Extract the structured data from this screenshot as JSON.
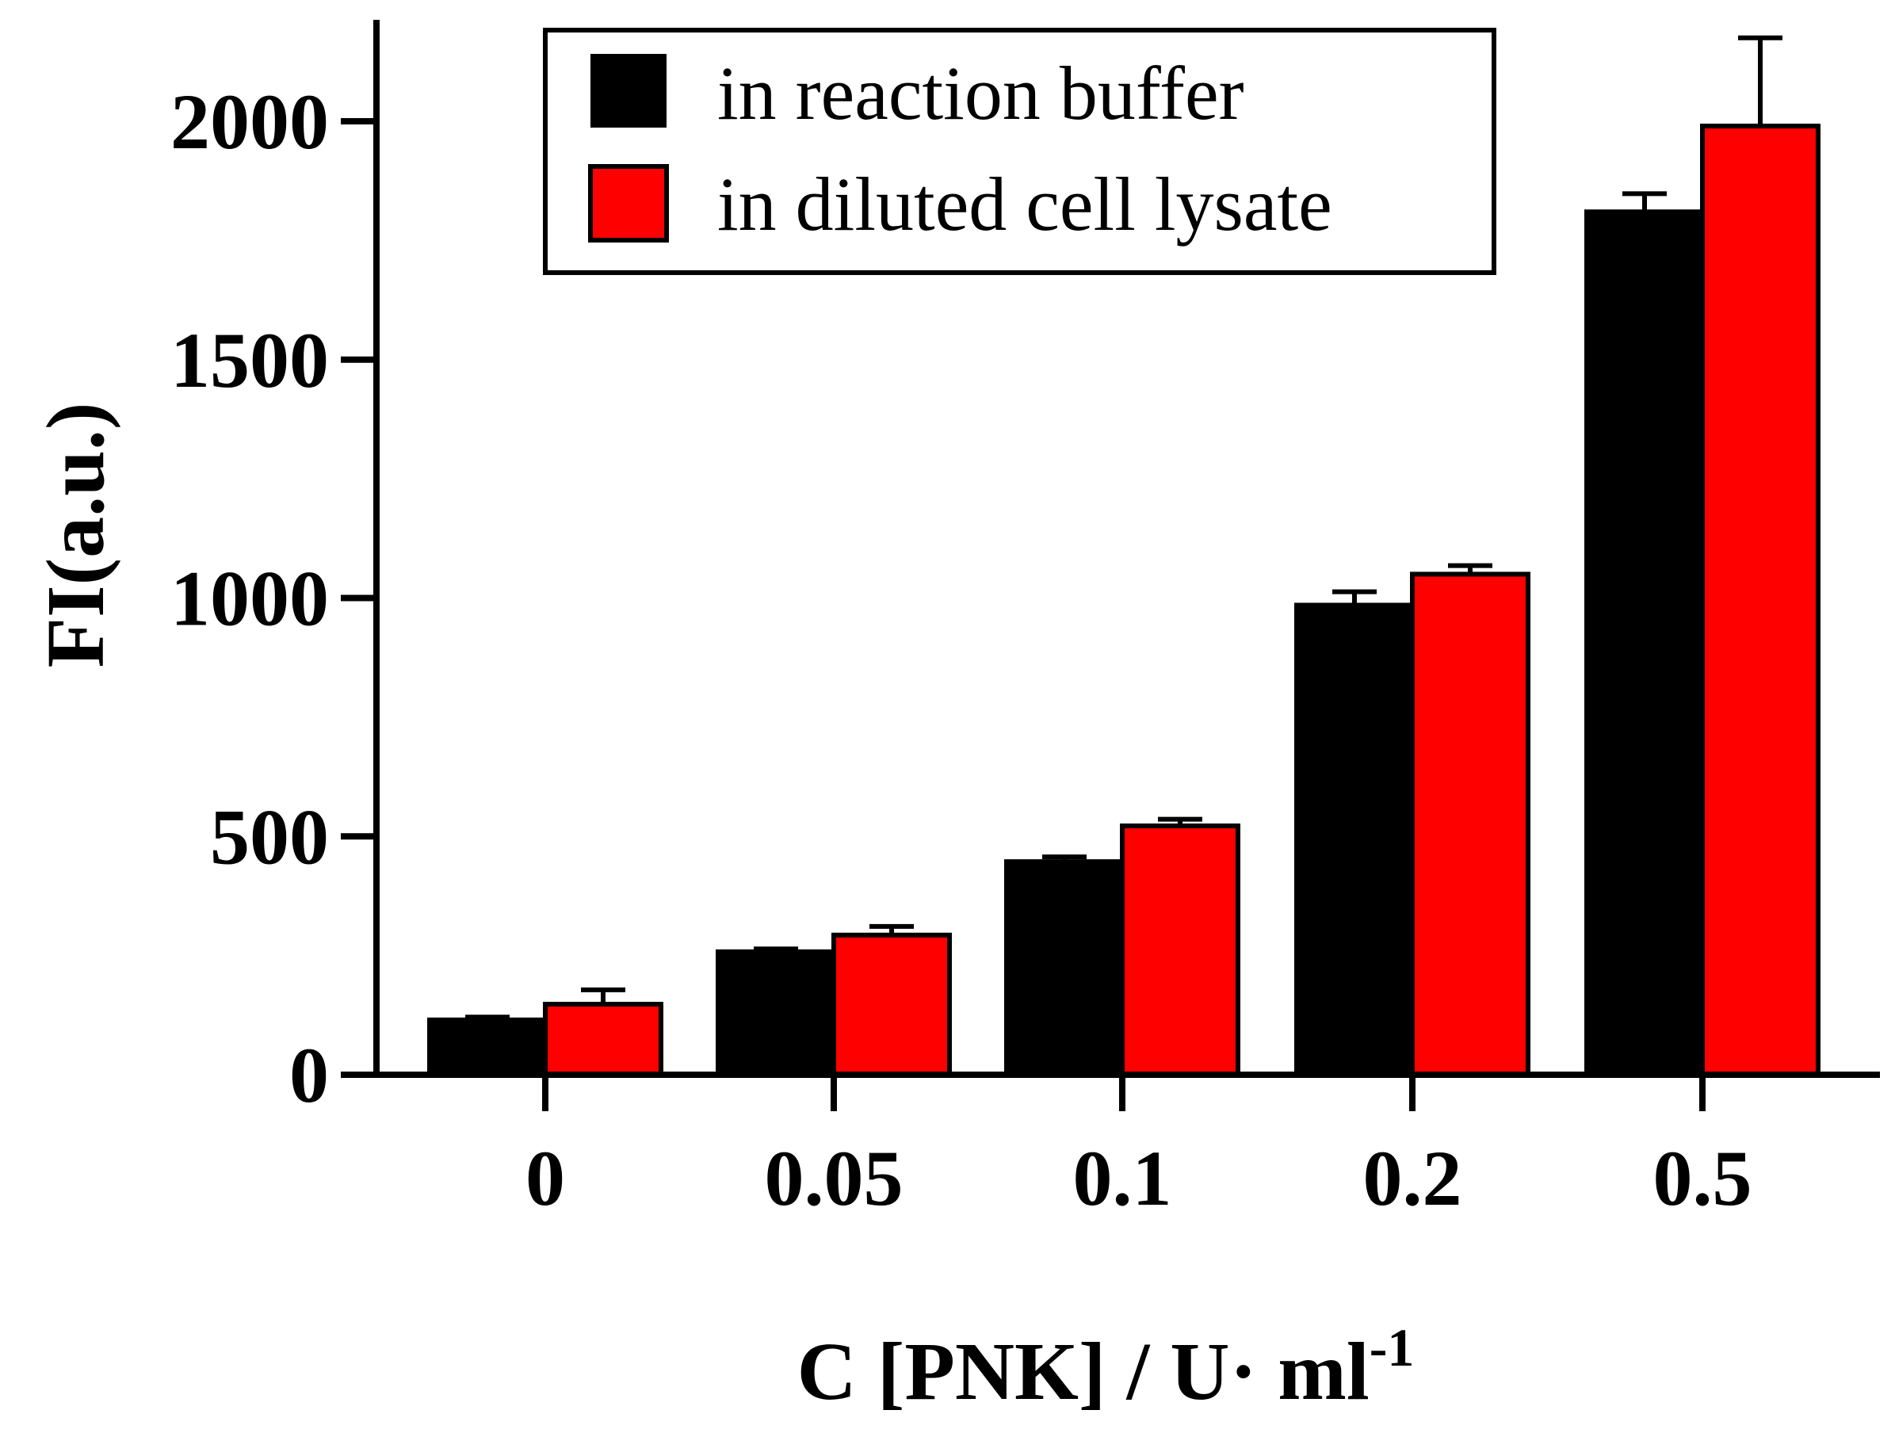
{
  "chart_data": {
    "type": "bar",
    "title": "",
    "xlabel": "C [PNK] / U· ml",
    "xlabel_superscript": "-1",
    "ylabel": "FI(a.u.)",
    "categories": [
      "0",
      "0.05",
      "0.1",
      "0.2",
      "0.5"
    ],
    "ylim": [
      0,
      2200
    ],
    "yticks": [
      0,
      500,
      1000,
      1500,
      2000
    ],
    "ytick_labels": [
      "0",
      "500",
      "1000",
      "1500",
      "2000"
    ],
    "grid": false,
    "legend_position": "top-center",
    "series": [
      {
        "name": "in reaction buffer",
        "color": "#000000",
        "values": [
          115,
          258,
          447,
          985,
          1810
        ],
        "errors": [
          6,
          6,
          10,
          28,
          38
        ]
      },
      {
        "name": "in diluted cell lysate",
        "color": "#ff0000",
        "values": [
          148,
          293,
          522,
          1050,
          1990
        ],
        "errors": [
          30,
          18,
          14,
          18,
          185
        ]
      }
    ]
  }
}
